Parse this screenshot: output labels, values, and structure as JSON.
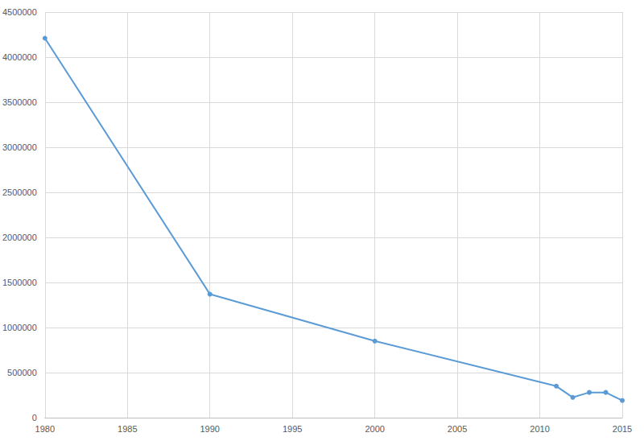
{
  "chart_data": {
    "type": "line",
    "x": [
      1980,
      1990,
      2000,
      2011,
      2012,
      2013,
      2014,
      2015
    ],
    "values": [
      4210000,
      1370000,
      850000,
      350000,
      225000,
      280000,
      280000,
      190000
    ],
    "color": "#5b9bd5",
    "marker": "circle",
    "line_style": "solid",
    "xlim": [
      1980,
      2015
    ],
    "xticks": [
      1980,
      1985,
      1990,
      1995,
      2000,
      2005,
      2010,
      2015
    ],
    "ylim": [
      0,
      4500000
    ],
    "yticks": [
      0,
      500000,
      1000000,
      1500000,
      2000000,
      2500000,
      3000000,
      3500000,
      4000000,
      4500000
    ],
    "grid": true
  }
}
